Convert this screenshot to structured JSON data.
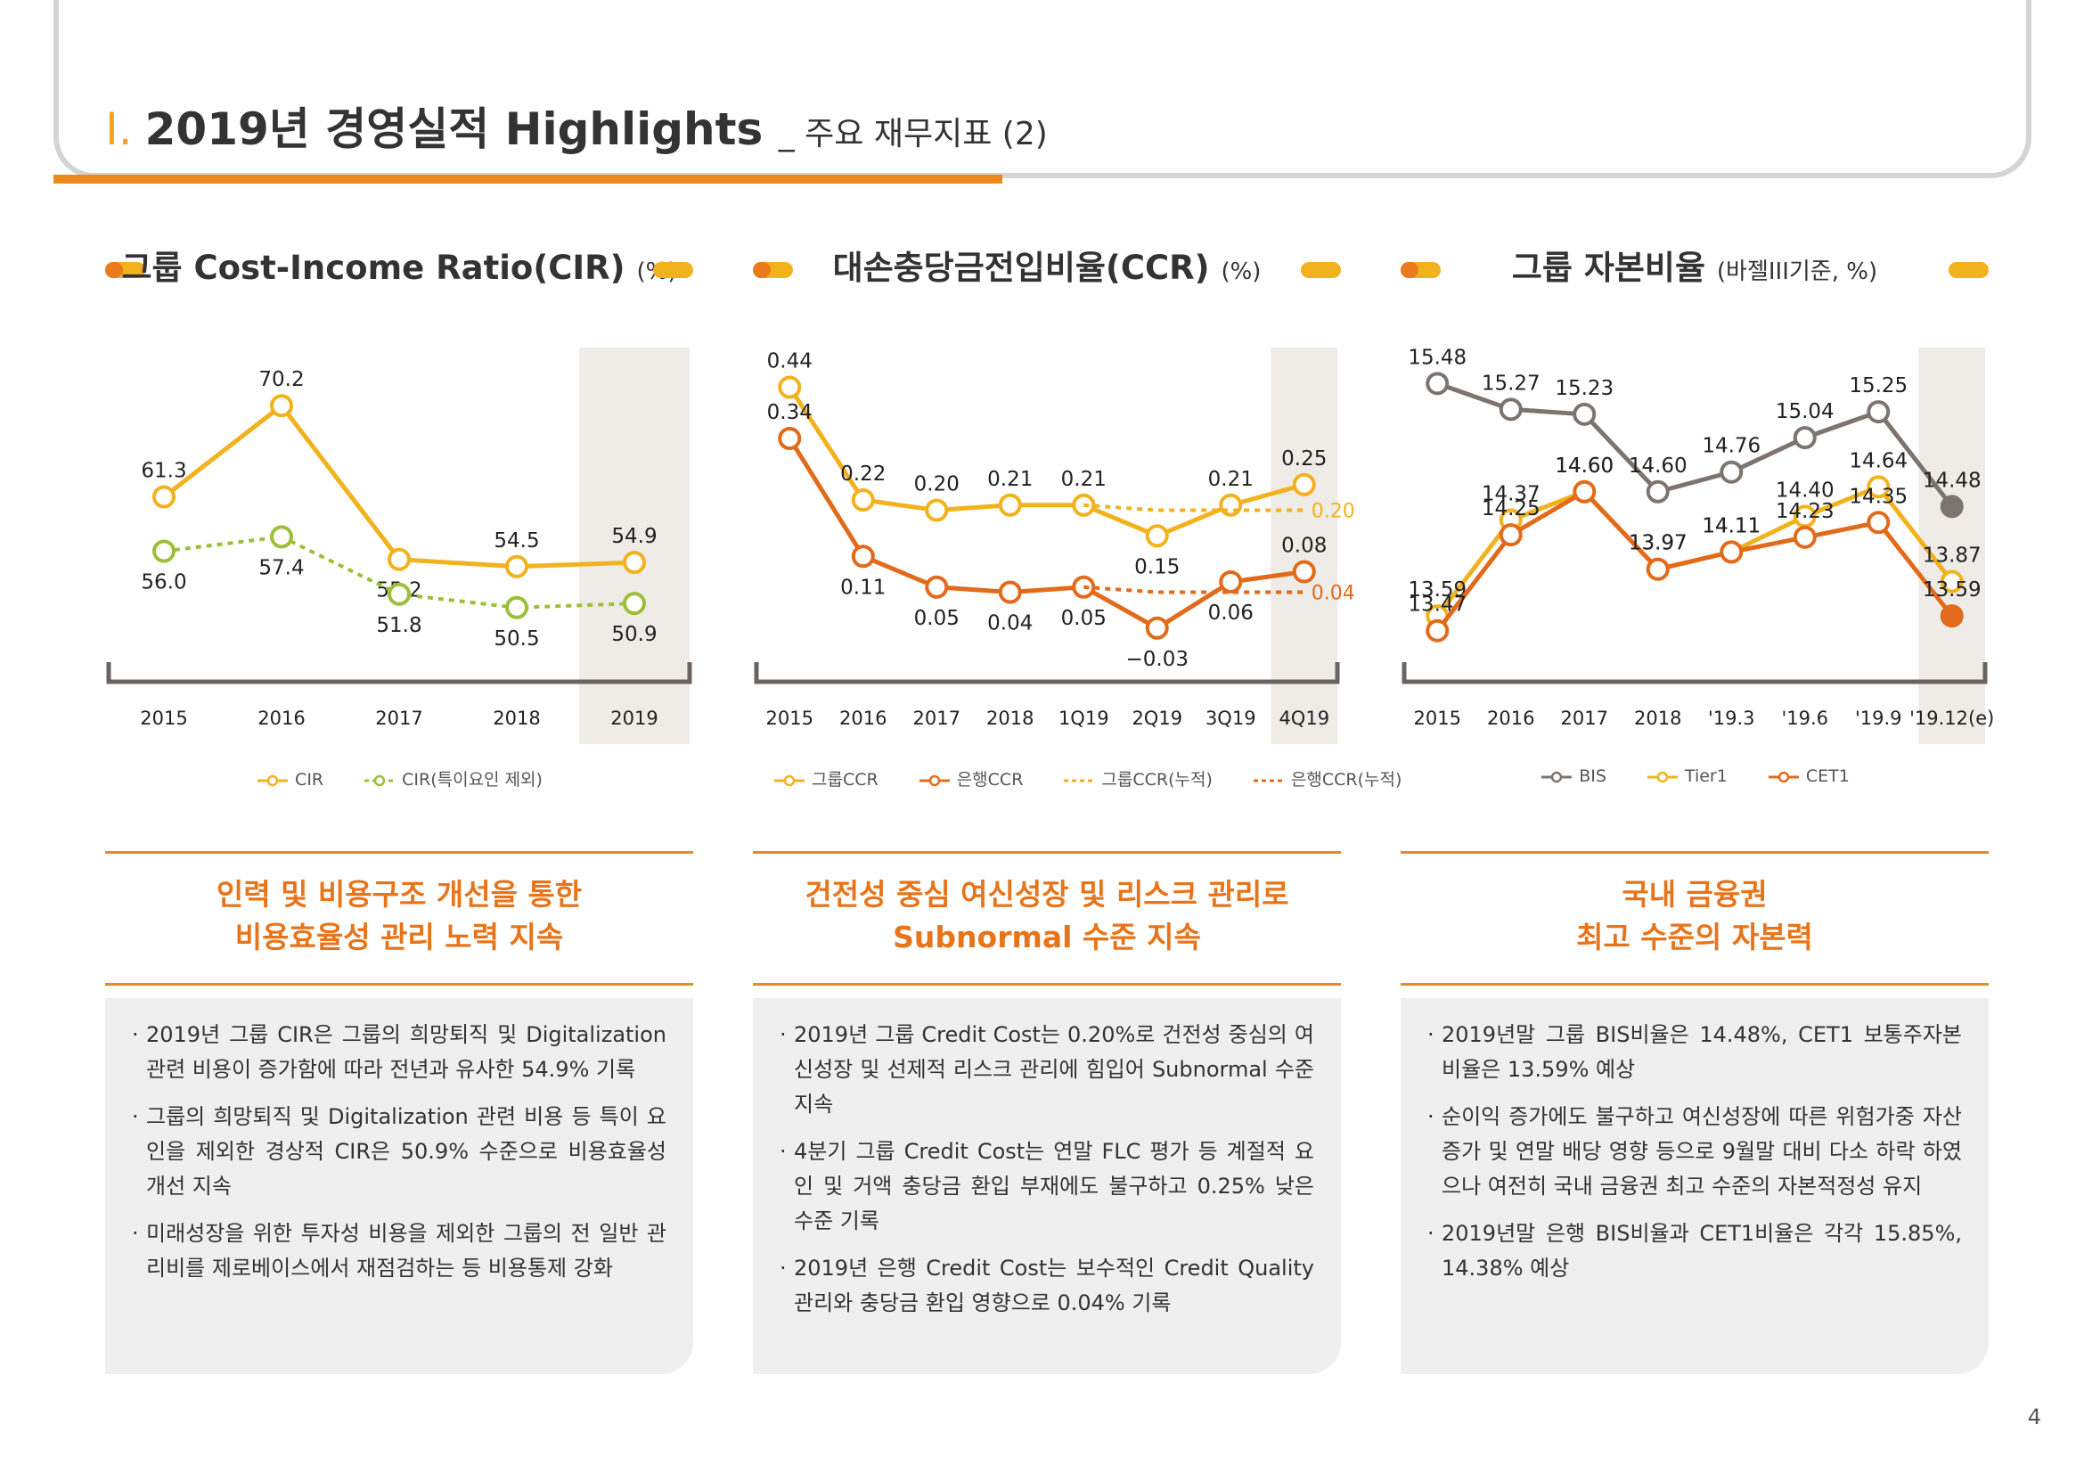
{
  "header": {
    "roman": "I.",
    "title": "2019년 경영실적 Highlights",
    "subtitle": "_ 주요 재무지표 (2)"
  },
  "page_number": "4",
  "panels": [
    {
      "title": "그룹 Cost-Income Ratio(CIR)",
      "unit": "(%)",
      "legend": [
        "CIR",
        "CIR(특이요인 제외)"
      ],
      "highlight": [
        "인력 및 비용구조 개선을 통한",
        "비용효율성 관리 노력 지속"
      ],
      "bullets": [
        "2019년 그룹 CIR은 그룹의 희망퇴직 및 Digitalization 관련 비용이 증가함에 따라 전년과 유사한 54.9% 기록",
        "그룹의 희망퇴직 및 Digitalization 관련 비용 등 특이 요인을 제외한 경상적 CIR은 50.9% 수준으로 비용효율성 개선 지속",
        "미래성장을 위한 투자성 비용을 제외한 그룹의 전 일반 관리비를 제로베이스에서 재점검하는 등 비용통제 강화"
      ]
    },
    {
      "title": "대손충당금전입비율(CCR)",
      "unit": "(%)",
      "legend": [
        "그룹CCR",
        "은행CCR",
        "그룹CCR(누적)",
        "은행CCR(누적)"
      ],
      "highlight": [
        "건전성 중심 여신성장 및 리스크 관리로",
        "Subnormal 수준 지속"
      ],
      "bullets": [
        "2019년 그룹 Credit Cost는 0.20%로 건전성 중심의 여신성장 및 선제적 리스크 관리에 힘입어 Subnormal 수준 지속",
        "4분기 그룹 Credit Cost는 연말 FLC 평가 등 계절적 요인 및 거액 충당금 환입 부재에도 불구하고 0.25% 낮은 수준 기록",
        "2019년 은행 Credit Cost는 보수적인 Credit Quality 관리와 충당금 환입 영향으로 0.04% 기록"
      ]
    },
    {
      "title": "그룹 자본비율",
      "unit": "(바젤III기준, %)",
      "legend": [
        "BIS",
        "Tier1",
        "CET1"
      ],
      "highlight": [
        "국내 금융권",
        "최고 수준의 자본력"
      ],
      "bullets": [
        "2019년말 그룹 BIS비율은 14.48%, CET1 보통주자본 비율은 13.59% 예상",
        "순이익 증가에도 불구하고 여신성장에 따른 위험가중 자산 증가 및 연말 배당 영향 등으로 9월말 대비 다소 하락 하였으나 여전히 국내 금융권 최고 수준의 자본적정성 유지",
        "2019년말 은행 BIS비율과 CET1비율은 각각 15.85%, 14.38% 예상"
      ]
    }
  ],
  "colors": {
    "yellow": "#f2b21d",
    "green": "#9cbf3a",
    "orange": "#e26a1b",
    "gray": "#7d7470",
    "shade": "#efebe6",
    "accent": "#ea8a1c"
  },
  "chart_data": [
    {
      "type": "line",
      "categories": [
        "2015",
        "2016",
        "2017",
        "2018",
        "2019"
      ],
      "ylim": [
        45,
        75
      ],
      "highlight_last": true,
      "series": [
        {
          "name": "CIR",
          "values": [
            61.3,
            70.2,
            55.2,
            54.5,
            54.9
          ],
          "labels": [
            "61.3",
            "70.2",
            "55.2",
            "54.5",
            "54.9"
          ],
          "color": "#f2b21d",
          "dash": false,
          "label_pos": [
            "above",
            "above",
            "below",
            "above",
            "above"
          ]
        },
        {
          "name": "CIR(특이요인 제외)",
          "values": [
            56.0,
            57.4,
            51.8,
            50.5,
            50.9
          ],
          "labels": [
            "56.0",
            "57.4",
            "51.8",
            "50.5",
            "50.9"
          ],
          "color": "#9cbf3a",
          "dash": true,
          "label_pos": [
            "below",
            "below",
            "below",
            "below",
            "below"
          ]
        }
      ]
    },
    {
      "type": "line",
      "categories": [
        "2015",
        "2016",
        "2017",
        "2018",
        "1Q19",
        "2Q19",
        "3Q19",
        "4Q19"
      ],
      "ylim": [
        -0.1,
        0.5
      ],
      "highlight_last": true,
      "series": [
        {
          "name": "그룹CCR",
          "values": [
            0.44,
            0.22,
            0.2,
            0.21,
            0.21,
            0.15,
            0.21,
            0.25
          ],
          "labels": [
            "0.44",
            "0.22",
            "0.20",
            "0.21",
            "0.21",
            "0.15",
            "0.21",
            "0.25"
          ],
          "color": "#f2b21d",
          "dash": false,
          "label_pos": [
            "above",
            "above",
            "above",
            "above",
            "above",
            "below",
            "above",
            "above"
          ]
        },
        {
          "name": "은행CCR",
          "values": [
            0.34,
            0.11,
            0.05,
            0.04,
            0.05,
            -0.03,
            0.06,
            0.08
          ],
          "labels": [
            "0.34",
            "0.11",
            "0.05",
            "0.04",
            "0.05",
            "−0.03",
            "0.06",
            "0.08"
          ],
          "color": "#e26a1b",
          "dash": false,
          "label_pos": [
            "above",
            "below",
            "below",
            "below",
            "below",
            "below",
            "below",
            "above"
          ]
        },
        {
          "name": "그룹CCR(누적)",
          "values": [
            null,
            null,
            null,
            null,
            0.21,
            0.2,
            0.2,
            0.2
          ],
          "end_label": "0.20",
          "color": "#f2b21d",
          "dash": true,
          "markers": false
        },
        {
          "name": "은행CCR(누적)",
          "values": [
            null,
            null,
            null,
            null,
            0.05,
            0.04,
            0.04,
            0.04
          ],
          "end_label": "0.04",
          "color": "#e26a1b",
          "dash": true,
          "markers": false
        }
      ]
    },
    {
      "type": "line",
      "categories": [
        "2015",
        "2016",
        "2017",
        "2018",
        "'19.3",
        "'19.6",
        "'19.9",
        "'19.12(e)"
      ],
      "ylim": [
        13.2,
        15.7
      ],
      "highlight_last": true,
      "series": [
        {
          "name": "BIS",
          "values": [
            15.48,
            15.27,
            15.23,
            14.6,
            14.76,
            15.04,
            15.25,
            14.48
          ],
          "labels": [
            "15.48",
            "15.27",
            "15.23",
            "14.60",
            "14.76",
            "15.04",
            "15.25",
            "14.48"
          ],
          "color": "#7d7470",
          "dash": false,
          "label_pos": [
            "above",
            "above",
            "above",
            "above",
            "above",
            "above",
            "above",
            "above"
          ]
        },
        {
          "name": "Tier1",
          "values": [
            13.59,
            14.37,
            14.6,
            13.97,
            14.11,
            14.4,
            14.64,
            13.87
          ],
          "labels": [
            "13.59",
            "14.37",
            "14.60",
            "13.97",
            "14.11",
            "14.40",
            "14.64",
            "13.87"
          ],
          "color": "#f2b21d",
          "dash": false,
          "label_pos": [
            "above",
            "above",
            "above",
            "above",
            "above",
            "above",
            "above",
            "above"
          ]
        },
        {
          "name": "CET1",
          "values": [
            13.47,
            14.25,
            14.6,
            13.97,
            14.11,
            14.23,
            14.35,
            13.59
          ],
          "labels": [
            "13.47",
            "14.25",
            "14.60",
            "13.97",
            "14.11",
            "14.23",
            "14.35",
            "13.59"
          ],
          "color": "#e26a1b",
          "dash": false,
          "label_pos": [
            "above",
            "above",
            "above",
            "above",
            "above",
            "above",
            "above",
            "above"
          ]
        }
      ]
    }
  ]
}
